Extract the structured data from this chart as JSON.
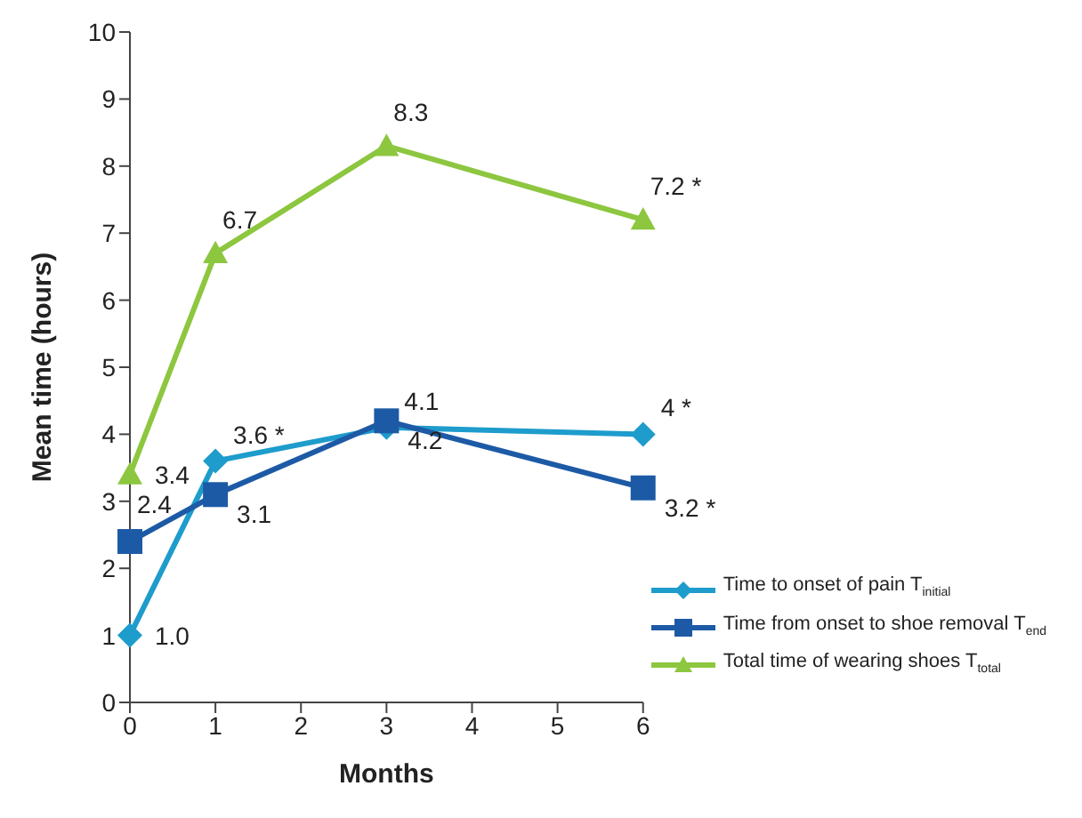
{
  "chart_data": {
    "type": "line",
    "xlabel": "Months",
    "ylabel": "Mean time (hours)",
    "x": [
      0,
      1,
      3,
      6
    ],
    "series": [
      {
        "name": "Time to onset of pain T$_{initial}$",
        "color": "#1e9ccc",
        "marker": "diamond",
        "values": [
          1.0,
          3.6,
          4.1,
          4
        ],
        "value_labels": [
          "1.0",
          "3.6 *",
          "4.1",
          "4 *"
        ]
      },
      {
        "name": "Time from onset to shoe removal T$_{end}$",
        "color": "#1d5aa6",
        "marker": "square",
        "values": [
          2.4,
          3.1,
          4.2,
          3.2
        ],
        "value_labels": [
          "2.4",
          "3.1",
          "4.2",
          "3.2 *"
        ]
      },
      {
        "name": "Total time of wearing shoes T$_{total}$",
        "color": "#8dc63f",
        "marker": "triangle",
        "values": [
          3.4,
          6.7,
          8.3,
          7.2
        ],
        "value_labels": [
          "3.4",
          "6.7",
          "8.3",
          "7.2 *"
        ]
      }
    ],
    "xlim": [
      0,
      6
    ],
    "xticks": [
      0,
      1,
      2,
      3,
      4,
      5,
      6
    ],
    "ylim": [
      0,
      10
    ],
    "yticks": [
      0,
      1,
      2,
      3,
      4,
      5,
      6,
      7,
      8,
      9,
      10
    ],
    "grid": false,
    "legend": "bottom right"
  }
}
